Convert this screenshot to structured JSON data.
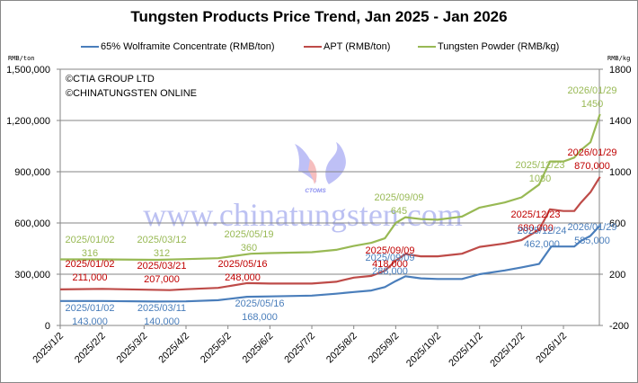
{
  "chart_data": {
    "type": "line",
    "title": "Tungsten Products Price Trend, Jan 2025 - Jan 2026",
    "legend": [
      {
        "name": "65% Wolframite Concentrate (RMB/ton)",
        "color": "#4a7ebb",
        "axis": "left"
      },
      {
        "name": "APT (RMB/ton)",
        "color": "#be4b48",
        "axis": "left"
      },
      {
        "name": "Tungsten Powder (RMB/kg)",
        "color": "#98b954",
        "axis": "right"
      }
    ],
    "legend_position": "top",
    "xlabel": "",
    "ylabel_left": "RMB/ton",
    "ylabel_right": "RMB/kg",
    "ylim_left": [
      0,
      1500000
    ],
    "ylim_right": [
      -200,
      1800
    ],
    "yticks_left": [
      "1,500,000",
      "1,200,000",
      "900,000",
      "600,000",
      "300,000",
      "0"
    ],
    "yticks_right": [
      "1800",
      "1400",
      "1000",
      "600",
      "200",
      "-200"
    ],
    "xticks": [
      "2025/1/2",
      "2025/2/2",
      "2025/3/2",
      "2025/4/2",
      "2025/5/2",
      "2025/6/2",
      "2025/7/2",
      "2025/8/2",
      "2025/9/2",
      "2025/10/2",
      "2025/11/2",
      "2025/12/2",
      "2026/1/2"
    ],
    "grid": true,
    "series": [
      {
        "name": "65% Wolframite Concentrate (RMB/ton)",
        "points": [
          [
            "2025/01/02",
            143000
          ],
          [
            "2025/02/02",
            143000
          ],
          [
            "2025/03/11",
            140000
          ],
          [
            "2025/04/02",
            141000
          ],
          [
            "2025/04/25",
            148000
          ],
          [
            "2025/05/16",
            168000
          ],
          [
            "2025/06/02",
            170000
          ],
          [
            "2025/07/02",
            175000
          ],
          [
            "2025/07/20",
            186000
          ],
          [
            "2025/08/02",
            196000
          ],
          [
            "2025/08/15",
            205000
          ],
          [
            "2025/08/25",
            225000
          ],
          [
            "2025/09/02",
            260000
          ],
          [
            "2025/09/09",
            288000
          ],
          [
            "2025/09/20",
            276000
          ],
          [
            "2025/10/02",
            272000
          ],
          [
            "2025/10/20",
            272000
          ],
          [
            "2025/11/02",
            300000
          ],
          [
            "2025/11/20",
            322000
          ],
          [
            "2025/12/02",
            340000
          ],
          [
            "2025/12/15",
            360000
          ],
          [
            "2025/12/24",
            462000
          ],
          [
            "2026/01/02",
            462000
          ],
          [
            "2026/01/10",
            462000
          ],
          [
            "2026/01/15",
            495000
          ],
          [
            "2026/01/22",
            525000
          ],
          [
            "2026/01/29",
            585000
          ]
        ]
      },
      {
        "name": "APT (RMB/ton)",
        "points": [
          [
            "2025/01/02",
            211000
          ],
          [
            "2025/02/02",
            214000
          ],
          [
            "2025/03/21",
            207000
          ],
          [
            "2025/04/02",
            212000
          ],
          [
            "2025/04/25",
            220000
          ],
          [
            "2025/05/16",
            248000
          ],
          [
            "2025/06/02",
            245000
          ],
          [
            "2025/07/02",
            245000
          ],
          [
            "2025/07/20",
            256000
          ],
          [
            "2025/08/02",
            280000
          ],
          [
            "2025/08/15",
            290000
          ],
          [
            "2025/08/25",
            320000
          ],
          [
            "2025/09/02",
            380000
          ],
          [
            "2025/09/09",
            418000
          ],
          [
            "2025/09/20",
            405000
          ],
          [
            "2025/10/02",
            405000
          ],
          [
            "2025/10/20",
            420000
          ],
          [
            "2025/11/02",
            460000
          ],
          [
            "2025/11/20",
            480000
          ],
          [
            "2025/12/02",
            500000
          ],
          [
            "2025/12/15",
            560000
          ],
          [
            "2025/12/23",
            680000
          ],
          [
            "2026/01/02",
            670000
          ],
          [
            "2026/01/10",
            670000
          ],
          [
            "2026/01/15",
            720000
          ],
          [
            "2026/01/22",
            780000
          ],
          [
            "2026/01/29",
            870000
          ]
        ]
      },
      {
        "name": "Tungsten Powder (RMB/kg)",
        "points": [
          [
            "2025/01/02",
            316
          ],
          [
            "2025/02/02",
            316
          ],
          [
            "2025/03/12",
            312
          ],
          [
            "2025/04/02",
            318
          ],
          [
            "2025/04/25",
            325
          ],
          [
            "2025/05/19",
            360
          ],
          [
            "2025/06/02",
            365
          ],
          [
            "2025/07/02",
            372
          ],
          [
            "2025/07/20",
            390
          ],
          [
            "2025/08/02",
            420
          ],
          [
            "2025/08/15",
            445
          ],
          [
            "2025/08/25",
            480
          ],
          [
            "2025/09/02",
            600
          ],
          [
            "2025/09/09",
            645
          ],
          [
            "2025/09/20",
            630
          ],
          [
            "2025/10/02",
            625
          ],
          [
            "2025/10/20",
            650
          ],
          [
            "2025/11/02",
            720
          ],
          [
            "2025/11/20",
            760
          ],
          [
            "2025/12/02",
            800
          ],
          [
            "2025/12/15",
            900
          ],
          [
            "2025/12/23",
            1080
          ],
          [
            "2026/01/02",
            1080
          ],
          [
            "2026/01/10",
            1110
          ],
          [
            "2026/01/15",
            1170
          ],
          [
            "2026/01/22",
            1230
          ],
          [
            "2026/01/29",
            1450
          ]
        ]
      }
    ],
    "annotations": [
      {
        "series": "Tungsten Powder",
        "lines": [
          "2025/01/02",
          "316"
        ]
      },
      {
        "series": "Tungsten Powder",
        "lines": [
          "2025/03/12",
          "312"
        ]
      },
      {
        "series": "Tungsten Powder",
        "lines": [
          "2025/05/19",
          "360"
        ]
      },
      {
        "series": "Tungsten Powder",
        "lines": [
          "2025/09/09",
          "645"
        ]
      },
      {
        "series": "Tungsten Powder",
        "lines": [
          "2025/12/23",
          "1080"
        ]
      },
      {
        "series": "Tungsten Powder",
        "lines": [
          "2026/01/29",
          "1450"
        ]
      },
      {
        "series": "APT",
        "lines": [
          "2025/01/02",
          "211,000"
        ]
      },
      {
        "series": "APT",
        "lines": [
          "2025/03/21",
          "207,000"
        ]
      },
      {
        "series": "APT",
        "lines": [
          "2025/05/16",
          "248,000"
        ]
      },
      {
        "series": "APT",
        "lines": [
          "2025/09/09",
          "418,000"
        ]
      },
      {
        "series": "APT",
        "lines": [
          "2025/12/23",
          "680,000"
        ]
      },
      {
        "series": "APT",
        "lines": [
          "2026/01/29",
          "870,000"
        ]
      },
      {
        "series": "Wolframite",
        "lines": [
          "2025/01/02",
          "143,000"
        ]
      },
      {
        "series": "Wolframite",
        "lines": [
          "2025/03/11",
          "140,000"
        ]
      },
      {
        "series": "Wolframite",
        "lines": [
          "2025/05/16",
          "168,000"
        ]
      },
      {
        "series": "Wolframite",
        "lines": [
          "2025/09/09",
          "288,000"
        ]
      },
      {
        "series": "Wolframite",
        "lines": [
          "2025/12/24",
          "462,000"
        ]
      },
      {
        "series": "Wolframite",
        "lines": [
          "2026/01/29",
          "585,000"
        ]
      }
    ]
  },
  "header": {
    "title": "Tungsten Products Price Trend, Jan 2025 - Jan 2026"
  },
  "legend": {
    "wolframite": "65% Wolframite Concentrate (RMB/ton)",
    "apt": "APT (RMB/ton)",
    "powder": "Tungsten Powder (RMB/kg)"
  },
  "axes": {
    "left_unit": "RMB/ton",
    "right_unit": "RMB/kg"
  },
  "copyright": {
    "line1": "©CTIA GROUP LTD",
    "line2": "©CHINATUNGSTEN ONLINE"
  },
  "watermark": {
    "logo_text": "CTOMS",
    "url": "www.chinatungsten.com"
  },
  "colors": {
    "wolframite": "#4a7ebb",
    "apt": "#be4b48",
    "powder": "#98b954",
    "apt_label": "#c00000",
    "grid": "#868686"
  }
}
